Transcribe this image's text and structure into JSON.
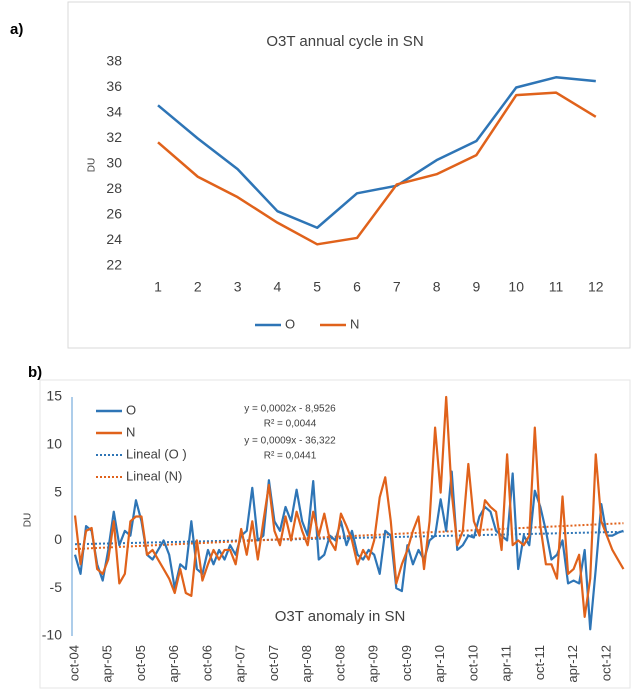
{
  "chart_data": [
    {
      "type": "line",
      "label": "a)",
      "title": "O3T annual cycle in SN",
      "y_label": "DU",
      "categories": [
        1,
        2,
        3,
        4,
        5,
        6,
        7,
        8,
        9,
        10,
        11,
        12
      ],
      "series": [
        {
          "name": "O",
          "color": "#2e75b6",
          "values": [
            34.6,
            32.0,
            29.6,
            26.3,
            25.0,
            27.7,
            28.3,
            30.3,
            31.8,
            36.0,
            36.8,
            36.5
          ]
        },
        {
          "name": "N",
          "color": "#e0621b",
          "values": [
            31.7,
            29.0,
            27.4,
            25.4,
            23.7,
            24.2,
            28.4,
            29.2,
            30.7,
            35.4,
            35.6,
            33.7
          ]
        }
      ],
      "ylim": [
        22,
        38
      ],
      "yticks": [
        22,
        24,
        26,
        28,
        30,
        32,
        34,
        36,
        38
      ],
      "grid": false,
      "legend": "bottom"
    },
    {
      "type": "line",
      "label": "b)",
      "title": "O3T anomaly in SN",
      "y_label": "DU",
      "categories": [
        "oct-04",
        null,
        null,
        null,
        null,
        null,
        "apr-05",
        null,
        null,
        null,
        null,
        null,
        "oct-05",
        null,
        null,
        null,
        null,
        null,
        "apr-06",
        null,
        null,
        null,
        null,
        null,
        "oct-06",
        null,
        null,
        null,
        null,
        null,
        "apr-07",
        null,
        null,
        null,
        null,
        null,
        "oct-07",
        null,
        null,
        null,
        null,
        null,
        "apr-08",
        null,
        null,
        null,
        null,
        null,
        "oct-08",
        null,
        null,
        null,
        null,
        null,
        "apr-09",
        null,
        null,
        null,
        null,
        null,
        "oct-09",
        null,
        null,
        null,
        null,
        null,
        "apr-10",
        null,
        null,
        null,
        null,
        null,
        "oct-10",
        null,
        null,
        null,
        null,
        null,
        "apr-11",
        null,
        null,
        null,
        null,
        null,
        "oct-11",
        null,
        null,
        null,
        null,
        null,
        "apr-12",
        null,
        null,
        null,
        null,
        null,
        "oct-12",
        null,
        null,
        null
      ],
      "series": [
        {
          "name": "O",
          "color": "#2e75b6",
          "values": [
            -1.5,
            -3.5,
            1.5,
            1.0,
            -2.5,
            -4.2,
            -1.0,
            3.0,
            -0.5,
            1.0,
            0.5,
            4.2,
            2.0,
            -1.5,
            -2.0,
            -1.0,
            0.0,
            -1.5,
            -5.0,
            -2.5,
            -3.0,
            2.0,
            -3.0,
            -3.5,
            -1.0,
            -2.5,
            -1.0,
            -2.0,
            -0.5,
            -1.5,
            0.5,
            1.0,
            5.5,
            0.0,
            0.5,
            6.3,
            2.0,
            1.0,
            3.5,
            2.0,
            5.3,
            2.0,
            0.5,
            6.2,
            -2.0,
            -1.5,
            0.5,
            0.0,
            2.0,
            -0.5,
            1.0,
            -1.5,
            -2.0,
            -1.0,
            -1.5,
            -3.5,
            1.0,
            0.5,
            -5.0,
            -5.3,
            -0.5,
            -2.5,
            -1.0,
            -2.0,
            0.0,
            0.5,
            4.3,
            1.0,
            7.2,
            -1.0,
            -0.5,
            0.5,
            0.3,
            2.5,
            3.5,
            3.0,
            1.0,
            0.5,
            0.0,
            7.0,
            -3.0,
            0.5,
            -0.5,
            5.2,
            3.5,
            1.0,
            -2.0,
            -1.5,
            0.0,
            -4.5,
            -4.2,
            -4.5,
            -1.0,
            -9.3,
            -3.0,
            3.8,
            0.5,
            0.5,
            0.8,
            1.0
          ]
        },
        {
          "name": "N",
          "color": "#e0621b",
          "values": [
            2.6,
            -2.5,
            1.0,
            1.3,
            -3.0,
            -3.5,
            -2.0,
            2.0,
            -4.5,
            -3.5,
            2.0,
            2.5,
            2.5,
            -1.5,
            -1.0,
            -2.0,
            -3.0,
            -4.0,
            -5.5,
            -3.0,
            -5.5,
            -5.8,
            0.0,
            -4.2,
            -2.5,
            -1.0,
            -2.0,
            -1.0,
            -1.0,
            -2.5,
            1.2,
            -1.5,
            2.0,
            -2.0,
            2.0,
            5.8,
            1.0,
            -0.5,
            2.5,
            0.0,
            3.0,
            1.0,
            -0.5,
            3.0,
            0.5,
            2.8,
            0.0,
            -1.0,
            2.8,
            1.5,
            0.0,
            -2.5,
            -1.0,
            -2.0,
            0.0,
            4.5,
            6.6,
            2.0,
            -4.5,
            -2.5,
            -1.0,
            1.0,
            2.5,
            -3.0,
            2.0,
            11.8,
            5.0,
            15.0,
            5.0,
            -0.5,
            1.0,
            8.0,
            2.0,
            0.5,
            4.2,
            3.5,
            3.0,
            -1.0,
            9.0,
            -0.5,
            0.0,
            -0.5,
            0.5,
            11.8,
            1.5,
            -2.5,
            -2.5,
            -4.0,
            4.6,
            -3.5,
            -3.0,
            -1.5,
            -8.0,
            -4.0,
            9.0,
            2.0,
            0.5,
            -1.0,
            -2.0,
            -3.0
          ]
        }
      ],
      "trends": [
        {
          "name": "Lineal (O )",
          "color": "#2e75b6",
          "values": [
            -0.4,
            0.9
          ]
        },
        {
          "name": "Lineal (N)",
          "color": "#e0621b",
          "values": [
            -0.9,
            1.8
          ]
        }
      ],
      "annotations": [
        "y = 0,0002x - 8,9526",
        "R² = 0,0044",
        "y = 0,0009x - 36,322",
        "R² = 0,0441"
      ],
      "ylim": [
        -10,
        15
      ],
      "yticks": [
        -10,
        -5,
        0,
        5,
        10,
        15
      ],
      "grid": false,
      "legend": "top-left"
    }
  ]
}
